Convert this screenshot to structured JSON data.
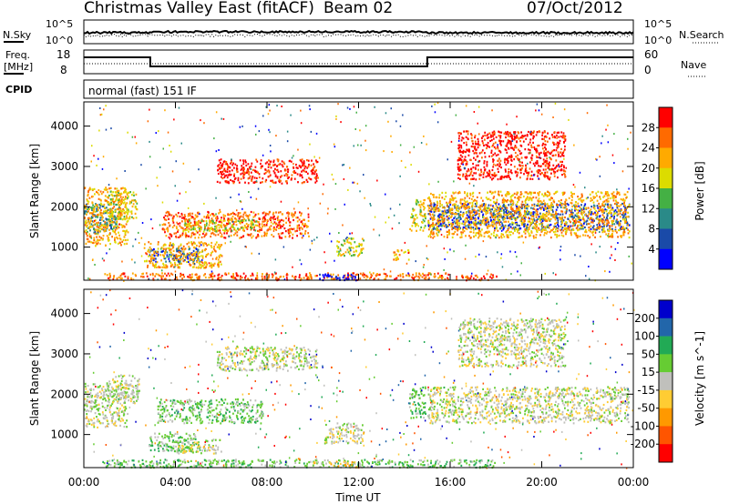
{
  "header": {
    "station": "Christmas Valley East (fitACF)",
    "beam": "Beam 02",
    "date": "07/Oct/2012"
  },
  "panels": {
    "noise": {
      "left_label": "N.Sky",
      "right_label": "N.Search",
      "left_ticks": [
        "10^5",
        "10^0"
      ],
      "right_ticks": [
        "10^5",
        "10^0"
      ]
    },
    "freq": {
      "left_label_1": "Freq.",
      "left_label_2": "[MHz]",
      "right_label": "Nave",
      "left_ticks": [
        "18",
        "8"
      ],
      "right_ticks": [
        "60",
        "0"
      ]
    },
    "cpid": {
      "label": "CPID",
      "value": "normal (fast) 151 IF"
    }
  },
  "chart_data": [
    {
      "type": "heatmap",
      "name": "power",
      "ylabel": "Slant Range [km]",
      "y_ticks": [
        1000,
        2000,
        3000,
        4000
      ],
      "ylim": [
        180,
        4600
      ],
      "x_ticks_hours": [
        0,
        4,
        8,
        12,
        16,
        20,
        24
      ],
      "colorbar": {
        "label": "Power [dB]",
        "ticks": [
          "28",
          "24",
          "20",
          "16",
          "12",
          "8",
          "4"
        ],
        "colors": [
          "#ff0000",
          "#ff6a00",
          "#ffaa00",
          "#dcdc00",
          "#44b044",
          "#2a8a88",
          "#1a4aa8",
          "#0000ff"
        ]
      },
      "features": [
        {
          "t0": 0.0,
          "t1": 1.4,
          "r0": 1350,
          "r1": 2100,
          "level": 5
        },
        {
          "t0": 0.0,
          "t1": 1.9,
          "r0": 1050,
          "r1": 2500,
          "level": 2
        },
        {
          "t0": 1.0,
          "t1": 2.3,
          "r0": 1700,
          "r1": 2400,
          "level": 3
        },
        {
          "t0": 2.8,
          "t1": 5.2,
          "r0": 650,
          "r1": 1000,
          "level": 6
        },
        {
          "t0": 2.6,
          "t1": 6.0,
          "r0": 500,
          "r1": 1150,
          "level": 2
        },
        {
          "t0": 3.4,
          "t1": 9.8,
          "r0": 1250,
          "r1": 1900,
          "level": 1
        },
        {
          "t0": 4.3,
          "t1": 7.5,
          "r0": 1400,
          "r1": 1700,
          "level": 3
        },
        {
          "t0": 5.8,
          "t1": 10.2,
          "r0": 2600,
          "r1": 3200,
          "level": 0
        },
        {
          "t0": 11.0,
          "t1": 12.2,
          "r0": 800,
          "r1": 1250,
          "level": 3
        },
        {
          "t0": 13.5,
          "t1": 14.2,
          "r0": 700,
          "r1": 950,
          "level": 2
        },
        {
          "t0": 14.2,
          "t1": 14.9,
          "r0": 1400,
          "r1": 2200,
          "level": 3
        },
        {
          "t0": 15.0,
          "t1": 23.8,
          "r0": 1450,
          "r1": 2100,
          "level": 6
        },
        {
          "t0": 15.0,
          "t1": 23.8,
          "r0": 1250,
          "r1": 2400,
          "level": 2
        },
        {
          "t0": 16.3,
          "t1": 21.0,
          "r0": 2700,
          "r1": 3900,
          "level": 0
        },
        {
          "t0": 0.8,
          "t1": 18.0,
          "r0": 200,
          "r1": 380,
          "level": 1
        },
        {
          "t0": 10.2,
          "t1": 11.9,
          "r0": 200,
          "r1": 350,
          "level": 7
        }
      ]
    },
    {
      "type": "heatmap",
      "name": "velocity",
      "ylabel": "Slant Range [km]",
      "xlabel": "Time UT",
      "y_ticks": [
        1000,
        2000,
        3000,
        4000
      ],
      "ylim": [
        180,
        4600
      ],
      "x_ticks": [
        "00:00",
        "04:00",
        "08:00",
        "12:00",
        "16:00",
        "20:00",
        "00:00"
      ],
      "x_ticks_hours": [
        0,
        4,
        8,
        12,
        16,
        20,
        24
      ],
      "colorbar": {
        "label": "Velocity [m s^-1]",
        "ticks": [
          "200",
          "100",
          "50",
          "15",
          "-15",
          "-50",
          "-100",
          "-200"
        ],
        "colors": [
          "#0000cc",
          "#2266aa",
          "#22aa55",
          "#66cc33",
          "#c0c0bc",
          "#ffcc33",
          "#ff9900",
          "#ff5500",
          "#ff0000"
        ]
      },
      "features": [
        {
          "t0": 0.0,
          "t1": 1.9,
          "r0": 1200,
          "r1": 2300,
          "level": 4
        },
        {
          "t0": 1.0,
          "t1": 2.4,
          "r0": 1800,
          "r1": 2500,
          "level": 4
        },
        {
          "t0": 3.2,
          "t1": 7.8,
          "r0": 1300,
          "r1": 1900,
          "level": 3
        },
        {
          "t0": 2.8,
          "t1": 5.0,
          "r0": 600,
          "r1": 1050,
          "level": 3
        },
        {
          "t0": 4.0,
          "t1": 6.0,
          "r0": 550,
          "r1": 900,
          "level": 4
        },
        {
          "t0": 5.8,
          "t1": 10.2,
          "r0": 2600,
          "r1": 3200,
          "level": 4
        },
        {
          "t0": 10.5,
          "t1": 12.2,
          "r0": 800,
          "r1": 1300,
          "level": 4
        },
        {
          "t0": 14.2,
          "t1": 14.9,
          "r0": 1400,
          "r1": 2200,
          "level": 3
        },
        {
          "t0": 15.0,
          "t1": 23.8,
          "r0": 1300,
          "r1": 2200,
          "level": 4
        },
        {
          "t0": 16.3,
          "t1": 21.0,
          "r0": 2700,
          "r1": 3900,
          "level": 4
        },
        {
          "t0": 0.8,
          "t1": 18.0,
          "r0": 200,
          "r1": 400,
          "level": 3
        },
        {
          "t0": 10.0,
          "t1": 12.0,
          "r0": 200,
          "r1": 350,
          "level": 5
        }
      ]
    }
  ]
}
